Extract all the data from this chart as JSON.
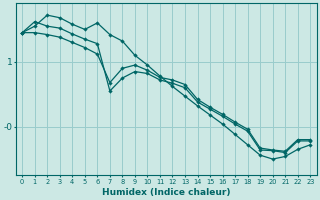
{
  "xlabel": "Humidex (Indice chaleur)",
  "bg_color": "#cce8e4",
  "grid_color": "#99cccc",
  "line_color": "#006666",
  "xlim": [
    -0.5,
    23.5
  ],
  "ylim": [
    -0.75,
    1.9
  ],
  "yticks": [
    1.0,
    0.0
  ],
  "ytick_labels": [
    "1",
    "-0"
  ],
  "xticks": [
    0,
    1,
    2,
    3,
    4,
    5,
    6,
    7,
    8,
    9,
    10,
    11,
    12,
    13,
    14,
    15,
    16,
    17,
    18,
    19,
    20,
    21,
    22,
    23
  ],
  "line1_x": [
    0,
    1,
    2,
    3,
    4,
    5,
    6,
    7,
    8,
    9,
    10,
    11,
    12,
    13,
    14,
    15,
    16,
    17,
    18,
    19,
    20,
    21,
    22,
    23
  ],
  "line1_y": [
    1.45,
    1.62,
    1.55,
    1.52,
    1.43,
    1.35,
    1.28,
    0.55,
    0.75,
    0.85,
    0.82,
    0.72,
    0.67,
    0.6,
    0.38,
    0.27,
    0.16,
    0.04,
    -0.07,
    -0.36,
    -0.37,
    -0.4,
    -0.22,
    -0.22
  ],
  "line2_x": [
    0,
    1,
    2,
    3,
    4,
    5,
    6,
    7,
    8,
    9,
    10,
    11,
    12,
    13,
    14,
    15,
    16,
    17,
    18,
    19,
    20,
    21,
    22,
    23
  ],
  "line2_y": [
    1.45,
    1.45,
    1.42,
    1.38,
    1.3,
    1.22,
    1.12,
    0.68,
    0.9,
    0.95,
    0.87,
    0.76,
    0.72,
    0.65,
    0.42,
    0.3,
    0.19,
    0.07,
    -0.04,
    -0.33,
    -0.36,
    -0.38,
    -0.2,
    -0.2
  ],
  "line3_x": [
    0,
    1,
    2,
    3,
    4,
    5,
    6,
    7,
    8,
    9,
    10,
    11,
    12,
    13,
    14,
    15,
    16,
    17,
    18,
    19,
    20,
    21,
    22,
    23
  ],
  "line3_y": [
    1.45,
    1.55,
    1.72,
    1.68,
    1.58,
    1.5,
    1.6,
    1.42,
    1.32,
    1.1,
    0.95,
    0.78,
    0.62,
    0.47,
    0.32,
    0.18,
    0.04,
    -0.12,
    -0.28,
    -0.44,
    -0.5,
    -0.46,
    -0.35,
    -0.28
  ]
}
